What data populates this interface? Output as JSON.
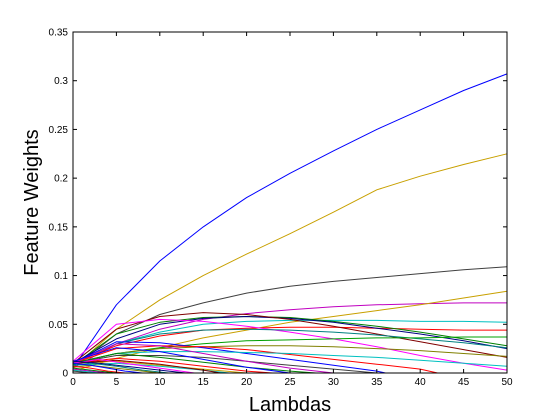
{
  "chart_data": {
    "type": "line",
    "title": "",
    "xlabel": "Lambdas",
    "ylabel": "Feature Weights",
    "xlim": [
      0,
      50
    ],
    "ylim": [
      0,
      0.35
    ],
    "xticks": [
      0,
      5,
      10,
      15,
      20,
      25,
      30,
      35,
      40,
      45,
      50
    ],
    "xtick_labels": [
      "0",
      "5",
      "10",
      "15",
      "20",
      "25",
      "30",
      "35",
      "40",
      "45",
      "50"
    ],
    "yticks": [
      0,
      0.05,
      0.1,
      0.15,
      0.2,
      0.25,
      0.3,
      0.35
    ],
    "ytick_labels": [
      "0",
      "0.05",
      "0.1",
      "0.15",
      "0.2",
      "0.25",
      "0.3",
      "0.35"
    ],
    "grid": false,
    "legend": "none",
    "series": [
      {
        "color": "#0000ff",
        "x": [
          0,
          5,
          10,
          15,
          20,
          25,
          30,
          35,
          40,
          45,
          50
        ],
        "y": [
          0.005,
          0.07,
          0.115,
          0.15,
          0.18,
          0.205,
          0.228,
          0.25,
          0.27,
          0.29,
          0.307
        ]
      },
      {
        "color": "#c8a000",
        "x": [
          0,
          5,
          10,
          15,
          20,
          25,
          30,
          35,
          40,
          45,
          50
        ],
        "y": [
          0.005,
          0.045,
          0.075,
          0.1,
          0.122,
          0.143,
          0.165,
          0.188,
          0.202,
          0.214,
          0.225
        ]
      },
      {
        "color": "#404040",
        "x": [
          0,
          5,
          10,
          15,
          20,
          25,
          30,
          35,
          40,
          45,
          50
        ],
        "y": [
          0.005,
          0.04,
          0.06,
          0.072,
          0.082,
          0.089,
          0.094,
          0.098,
          0.102,
          0.106,
          0.109
        ]
      },
      {
        "color": "#c000c0",
        "x": [
          0,
          5,
          10,
          15,
          20,
          25,
          30,
          35,
          40,
          45,
          50
        ],
        "y": [
          0.005,
          0.03,
          0.045,
          0.055,
          0.061,
          0.065,
          0.068,
          0.07,
          0.071,
          0.072,
          0.072
        ]
      },
      {
        "color": "#c8a000",
        "x": [
          0,
          5,
          10,
          15,
          20,
          25,
          30,
          35,
          40,
          45,
          50
        ],
        "y": [
          0.002,
          0.015,
          0.026,
          0.036,
          0.044,
          0.052,
          0.058,
          0.064,
          0.07,
          0.077,
          0.084
        ]
      },
      {
        "color": "#00c0c0",
        "x": [
          0,
          5,
          10,
          15,
          20,
          25,
          30,
          35,
          40,
          45,
          50
        ],
        "y": [
          0.01,
          0.03,
          0.042,
          0.05,
          0.053,
          0.054,
          0.054,
          0.054,
          0.053,
          0.053,
          0.052
        ]
      },
      {
        "color": "#ff0000",
        "x": [
          0,
          5,
          10,
          15,
          20,
          25,
          30,
          35,
          40,
          45,
          50
        ],
        "y": [
          0.01,
          0.028,
          0.038,
          0.044,
          0.046,
          0.047,
          0.047,
          0.046,
          0.045,
          0.044,
          0.044
        ]
      },
      {
        "color": "#008000",
        "x": [
          0,
          5,
          10,
          15,
          20,
          25,
          30,
          35,
          40,
          45,
          50
        ],
        "y": [
          0.008,
          0.04,
          0.052,
          0.057,
          0.058,
          0.057,
          0.053,
          0.048,
          0.042,
          0.035,
          0.028
        ]
      },
      {
        "color": "#000080",
        "x": [
          0,
          5,
          10,
          15,
          20,
          25,
          30,
          35,
          40,
          45,
          50
        ],
        "y": [
          0.01,
          0.035,
          0.05,
          0.056,
          0.058,
          0.056,
          0.052,
          0.046,
          0.04,
          0.033,
          0.025
        ]
      },
      {
        "color": "#800000",
        "x": [
          0,
          5,
          10,
          15,
          20,
          25,
          30,
          35,
          40,
          45,
          50
        ],
        "y": [
          0.01,
          0.045,
          0.058,
          0.062,
          0.06,
          0.055,
          0.048,
          0.04,
          0.032,
          0.024,
          0.016
        ]
      },
      {
        "color": "#ff00ff",
        "x": [
          0,
          5,
          10,
          15,
          20,
          25,
          30,
          35,
          40,
          45,
          50
        ],
        "y": [
          0.012,
          0.05,
          0.055,
          0.053,
          0.048,
          0.042,
          0.035,
          0.027,
          0.018,
          0.01,
          0.003
        ]
      },
      {
        "color": "#008080",
        "x": [
          0,
          5,
          10,
          15,
          20,
          25,
          30,
          35,
          40,
          45,
          50
        ],
        "y": [
          0.01,
          0.03,
          0.04,
          0.044,
          0.045,
          0.044,
          0.042,
          0.039,
          0.035,
          0.031,
          0.026
        ]
      },
      {
        "color": "#00a000",
        "x": [
          0,
          5,
          10,
          15,
          20,
          25,
          30,
          35,
          40,
          45,
          50
        ],
        "y": [
          0.01,
          0.02,
          0.026,
          0.03,
          0.033,
          0.034,
          0.035,
          0.036,
          0.036,
          0.037,
          0.037
        ]
      },
      {
        "color": "#808000",
        "x": [
          0,
          5,
          10,
          15,
          20,
          25,
          30,
          35,
          40,
          45,
          50
        ],
        "y": [
          0.01,
          0.02,
          0.025,
          0.027,
          0.028,
          0.028,
          0.027,
          0.025,
          0.023,
          0.02,
          0.017
        ]
      },
      {
        "color": "#0000ff",
        "x": [
          0,
          5,
          10,
          15,
          20,
          25,
          30,
          35,
          36
        ],
        "y": [
          0.01,
          0.032,
          0.031,
          0.026,
          0.02,
          0.014,
          0.008,
          0.002,
          0
        ]
      },
      {
        "color": "#ff0000",
        "x": [
          0,
          5,
          10,
          15,
          20,
          25,
          30,
          35,
          40,
          42
        ],
        "y": [
          0.01,
          0.025,
          0.028,
          0.027,
          0.024,
          0.019,
          0.014,
          0.009,
          0.004,
          0
        ]
      },
      {
        "color": "#00c0c0",
        "x": [
          0,
          5,
          10,
          15,
          20,
          25,
          30,
          35,
          40,
          45,
          50
        ],
        "y": [
          0.01,
          0.02,
          0.022,
          0.022,
          0.021,
          0.02,
          0.018,
          0.016,
          0.013,
          0.01,
          0.007
        ]
      },
      {
        "color": "#404040",
        "x": [
          0,
          5,
          10,
          15,
          20,
          25,
          30,
          35
        ],
        "y": [
          0.01,
          0.018,
          0.018,
          0.016,
          0.012,
          0.008,
          0.004,
          0
        ]
      },
      {
        "color": "#c000c0",
        "x": [
          0,
          5,
          10,
          15,
          20,
          25,
          30
        ],
        "y": [
          0.01,
          0.03,
          0.028,
          0.02,
          0.012,
          0.005,
          0
        ]
      },
      {
        "color": "#008000",
        "x": [
          0,
          5,
          10,
          15,
          20,
          25,
          28
        ],
        "y": [
          0.01,
          0.02,
          0.016,
          0.011,
          0.006,
          0.002,
          0
        ]
      },
      {
        "color": "#0000ff",
        "x": [
          0,
          5,
          10,
          15,
          20,
          25
        ],
        "y": [
          0.012,
          0.026,
          0.022,
          0.014,
          0.006,
          0
        ]
      },
      {
        "color": "#ff0000",
        "x": [
          0,
          5,
          10,
          15,
          20,
          23
        ],
        "y": [
          0.01,
          0.015,
          0.012,
          0.007,
          0.002,
          0
        ]
      },
      {
        "color": "#c8a000",
        "x": [
          0,
          5,
          10,
          15,
          20
        ],
        "y": [
          0.01,
          0.012,
          0.008,
          0.004,
          0
        ]
      },
      {
        "color": "#00c0c0",
        "x": [
          0,
          5,
          10,
          15,
          18
        ],
        "y": [
          0.008,
          0.01,
          0.007,
          0.003,
          0
        ]
      },
      {
        "color": "#800000",
        "x": [
          0,
          5,
          10,
          15,
          17
        ],
        "y": [
          0.01,
          0.013,
          0.009,
          0.003,
          0
        ]
      },
      {
        "color": "#ff00ff",
        "x": [
          0,
          3,
          6,
          10,
          14
        ],
        "y": [
          0.01,
          0.014,
          0.01,
          0.005,
          0
        ]
      },
      {
        "color": "#000080",
        "x": [
          0,
          3,
          6,
          10,
          13
        ],
        "y": [
          0.012,
          0.01,
          0.007,
          0.003,
          0
        ]
      },
      {
        "color": "#008080",
        "x": [
          0,
          2,
          5,
          8,
          11
        ],
        "y": [
          0.008,
          0.01,
          0.007,
          0.003,
          0
        ]
      },
      {
        "color": "#808000",
        "x": [
          0,
          2,
          4,
          7,
          10
        ],
        "y": [
          0.006,
          0.008,
          0.006,
          0.003,
          0
        ]
      },
      {
        "color": "#0000ff",
        "x": [
          0,
          2,
          4,
          6,
          8
        ],
        "y": [
          0.01,
          0.008,
          0.005,
          0.002,
          0
        ]
      },
      {
        "color": "#ff0000",
        "x": [
          0,
          2,
          4,
          6
        ],
        "y": [
          0.007,
          0.005,
          0.002,
          0
        ]
      },
      {
        "color": "#008000",
        "x": [
          0,
          1,
          3,
          5
        ],
        "y": [
          0.005,
          0.004,
          0.002,
          0
        ]
      },
      {
        "color": "#c000c0",
        "x": [
          0,
          1,
          2,
          4
        ],
        "y": [
          0.004,
          0.003,
          0.002,
          0
        ]
      },
      {
        "color": "#00c0c0",
        "x": [
          0,
          1,
          2,
          3
        ],
        "y": [
          0.003,
          0.002,
          0.001,
          0
        ]
      },
      {
        "color": "#404040",
        "x": [
          0,
          0.5,
          1,
          2
        ],
        "y": [
          0.002,
          0.0015,
          0.001,
          0
        ]
      }
    ]
  }
}
